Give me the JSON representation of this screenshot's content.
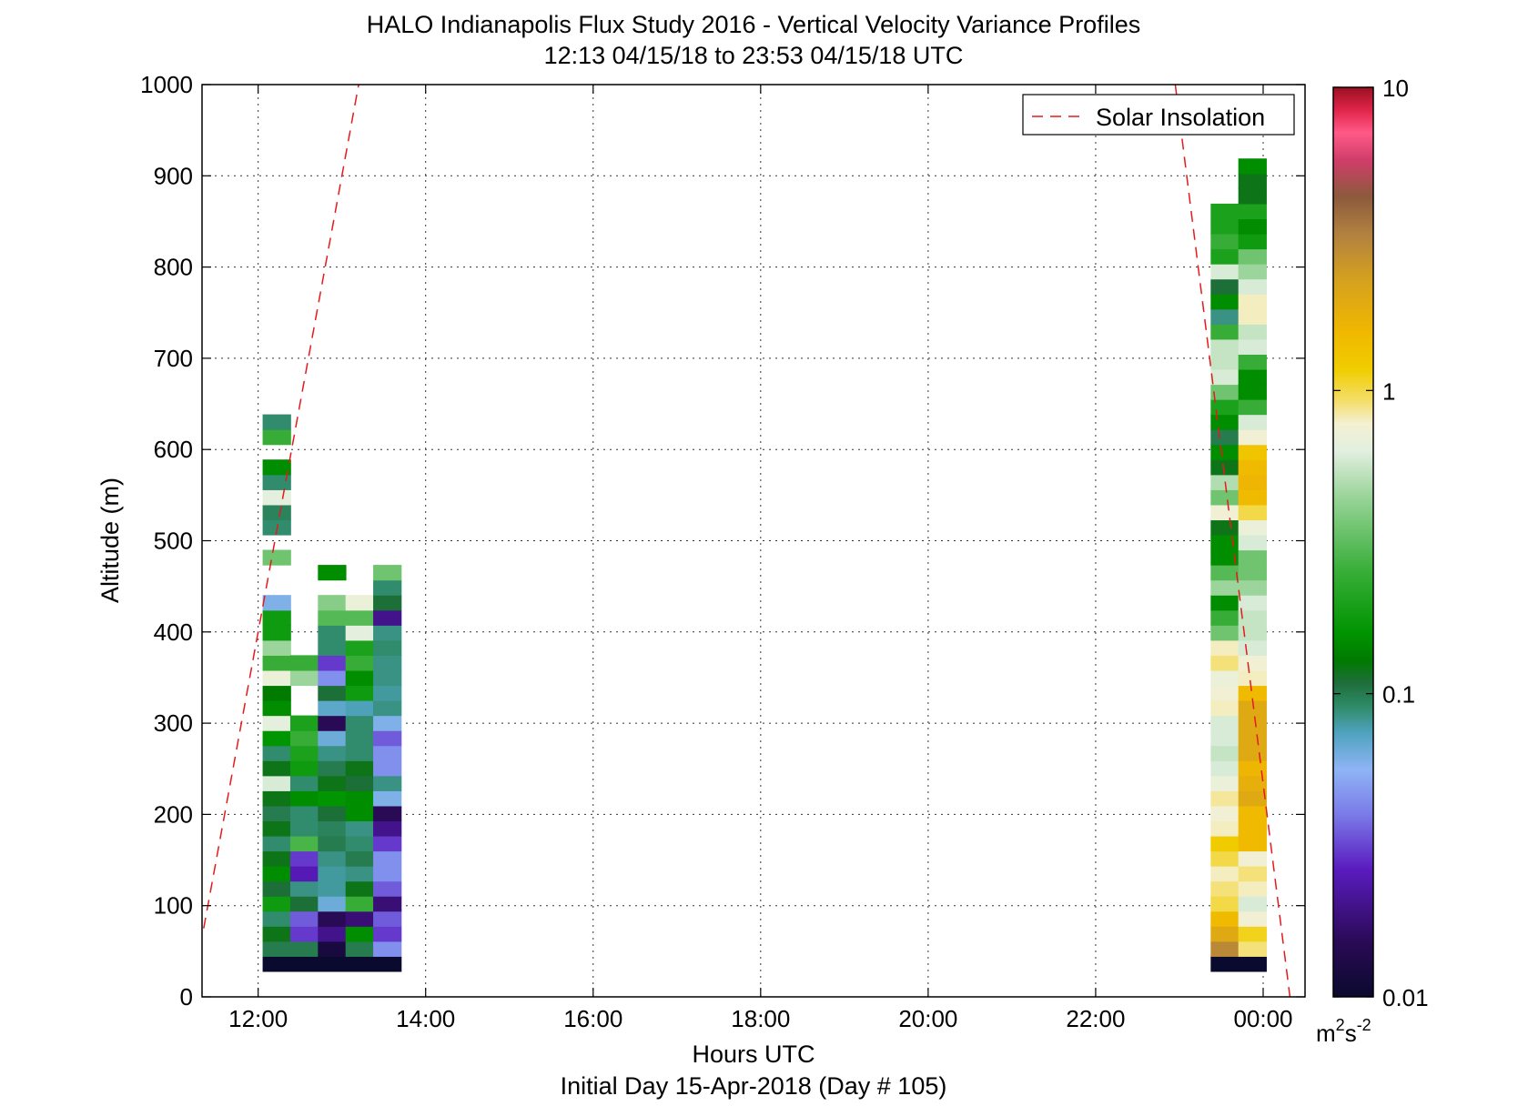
{
  "chart_data": {
    "type": "heatmap",
    "title": "HALO Indianapolis Flux Study 2016 - Vertical Velocity Variance Profiles",
    "subtitle": "12:13 04/15/18 to 23:53 04/15/18  UTC",
    "xlabel": "Hours UTC",
    "xlabel2": "Initial Day 15-Apr-2018 (Day # 105)",
    "ylabel": "Altitude (m)",
    "xlim": [
      11.33,
      24.5
    ],
    "ylim": [
      0,
      1000
    ],
    "x_ticks": [
      12,
      14,
      16,
      18,
      20,
      22,
      24
    ],
    "x_tick_labels": [
      "12:00",
      "14:00",
      "16:00",
      "18:00",
      "20:00",
      "22:00",
      "00:00"
    ],
    "y_ticks": [
      0,
      100,
      200,
      300,
      400,
      500,
      600,
      700,
      800,
      900,
      1000
    ],
    "y_tick_labels": [
      "0",
      "100",
      "200",
      "300",
      "400",
      "500",
      "600",
      "700",
      "800",
      "900",
      "1000"
    ],
    "grid": true,
    "legend": {
      "placement": "top-right",
      "entries": [
        {
          "label": "Solar Insolation",
          "style": "dashed",
          "color": "#e41a1c"
        }
      ]
    },
    "colorbar": {
      "scale": "log",
      "range": [
        0.01,
        10
      ],
      "ticks": [
        0.01,
        0.1,
        1,
        10
      ],
      "tick_labels": [
        "0.01",
        "0.1",
        "1",
        "10"
      ],
      "unit_base1": "m",
      "unit_exp1": "2",
      "unit_base2": "s",
      "unit_exp2": "-2"
    },
    "alt_bin_m": 16.5,
    "alt_base_m": 28,
    "col_width_h": 0.333,
    "profiles": [
      {
        "time_h": 12.22,
        "values": [
          0.01,
          0.1,
          0.12,
          0.09,
          0.18,
          0.11,
          0.15,
          0.12,
          0.09,
          0.12,
          0.1,
          0.12,
          0.6,
          0.12,
          0.09,
          0.16,
          0.65,
          0.15,
          0.13,
          0.7,
          0.25,
          0.45,
          0.18,
          0.18,
          0.06,
          null,
          null,
          0.35,
          null,
          0.09,
          0.095,
          0.65,
          0.09,
          0.15,
          null,
          0.25,
          0.09
        ]
      },
      {
        "time_h": 12.55,
        "values": [
          0.01,
          0.1,
          0.03,
          0.035,
          0.11,
          0.085,
          0.025,
          0.03,
          0.28,
          0.09,
          0.09,
          0.15,
          0.09,
          0.18,
          0.2,
          0.25,
          0.2,
          null,
          null,
          0.45,
          0.25
        ]
      },
      {
        "time_h": 12.88,
        "values": [
          0.01,
          0.012,
          0.02,
          0.015,
          0.065,
          0.08,
          0.08,
          0.085,
          0.1,
          0.095,
          0.11,
          0.16,
          0.12,
          0.1,
          0.085,
          0.065,
          0.015,
          0.07,
          0.11,
          0.045,
          0.03,
          0.09,
          0.09,
          0.3,
          0.4,
          null,
          0.15
        ]
      },
      {
        "time_h": 13.21,
        "values": [
          0.01,
          0.1,
          0.15,
          0.018,
          0.25,
          0.12,
          0.085,
          0.1,
          0.09,
          0.085,
          0.15,
          0.15,
          0.11,
          0.12,
          0.09,
          0.09,
          0.09,
          0.075,
          0.18,
          0.15,
          0.25,
          0.2,
          0.65,
          0.3,
          0.7
        ]
      },
      {
        "time_h": 13.54,
        "values": [
          0.01,
          0.045,
          0.03,
          0.035,
          0.018,
          0.035,
          0.045,
          0.045,
          0.03,
          0.02,
          0.015,
          0.06,
          0.085,
          0.045,
          0.045,
          0.035,
          0.06,
          0.085,
          0.08,
          0.085,
          0.085,
          0.09,
          0.085,
          0.02,
          0.11,
          0.09,
          0.35
        ]
      },
      {
        "time_h": 23.54,
        "values": [
          0.01,
          3.0,
          2.0,
          1.5,
          1.0,
          0.9,
          0.8,
          1.0,
          1.2,
          0.8,
          0.75,
          0.85,
          0.7,
          0.6,
          0.55,
          0.6,
          0.6,
          0.8,
          0.75,
          0.7,
          0.9,
          0.8,
          0.35,
          0.25,
          0.15,
          0.45,
          0.3,
          0.15,
          0.15,
          0.12,
          0.75,
          0.35,
          0.5,
          0.12,
          0.15,
          0.1,
          0.15,
          0.2,
          0.35,
          0.6,
          0.55,
          0.55,
          0.25,
          0.085,
          0.15,
          0.11,
          0.6,
          0.2,
          0.25,
          0.2,
          0.2
        ]
      },
      {
        "time_h": 23.87,
        "values": [
          0.01,
          0.9,
          1.1,
          0.75,
          0.6,
          0.8,
          0.9,
          0.75,
          1.5,
          1.5,
          1.5,
          2.0,
          1.8,
          1.6,
          2.0,
          2.0,
          2.0,
          2.0,
          1.5,
          0.8,
          0.75,
          0.6,
          0.55,
          0.55,
          0.6,
          0.45,
          0.35,
          0.35,
          0.6,
          0.7,
          1.0,
          1.5,
          1.6,
          1.5,
          1.3,
          0.75,
          0.6,
          0.25,
          0.15,
          0.15,
          0.25,
          0.6,
          0.55,
          0.8,
          0.8,
          0.6,
          0.45,
          0.35,
          0.18,
          0.15,
          0.2,
          0.12,
          0.12,
          0.15
        ]
      }
    ],
    "solar_insolation_lines": [
      {
        "points": [
          [
            11.35,
            75
          ],
          [
            13.2,
            1000
          ]
        ]
      },
      {
        "points": [
          [
            22.95,
            1000
          ],
          [
            24.32,
            0
          ]
        ]
      }
    ]
  }
}
